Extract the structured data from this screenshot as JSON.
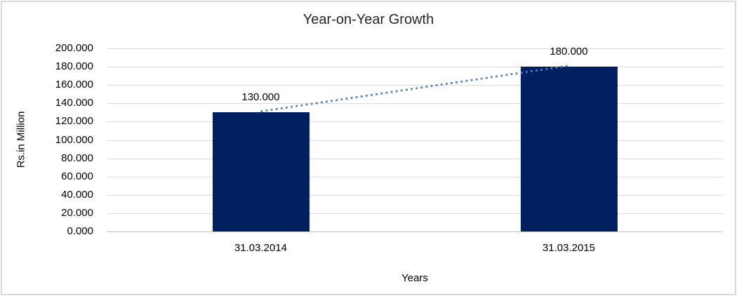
{
  "chart": {
    "title": "Year-on-Year Growth",
    "y_axis_title": "Rs.in Million",
    "x_axis_title": "Years"
  },
  "chart_data": {
    "type": "bar",
    "title": "Year-on-Year Growth",
    "xlabel": "Years",
    "ylabel": "Rs.in Million",
    "categories": [
      "31.03.2014",
      "31.03.2015"
    ],
    "values": [
      130,
      180
    ],
    "data_labels": [
      "130.000",
      "180.000"
    ],
    "ylim": [
      0,
      200
    ],
    "y_tick_step": 20,
    "y_tick_labels": [
      "0.000",
      "20.000",
      "40.000",
      "60.000",
      "80.000",
      "100.000",
      "120.000",
      "140.000",
      "160.000",
      "180.000",
      "200.000"
    ],
    "grid": true,
    "legend": false,
    "trendline": {
      "style": "dotted",
      "color": "#4f81bd",
      "from_value": 130,
      "to_value": 180
    },
    "colors": {
      "bar": "#002060",
      "trendline": "#4f81bd",
      "gridline": "#d9d9d9",
      "axis_line": "#c6c6c6",
      "frame_border": "#d9d9d9",
      "text": "#000000"
    }
  }
}
